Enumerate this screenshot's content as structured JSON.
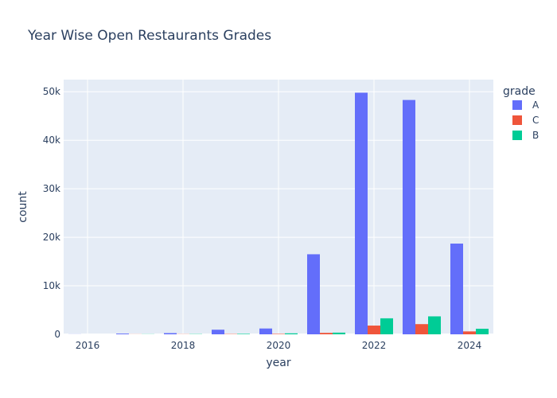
{
  "chart_data": {
    "type": "bar",
    "title": "Year Wise Open Restaurants Grades",
    "xlabel": "year",
    "ylabel": "count",
    "legend_title": "grade",
    "legend_position": "right",
    "x_ticks": [
      2016,
      2018,
      2020,
      2022,
      2024
    ],
    "y_ticks": [
      0,
      10000,
      20000,
      30000,
      40000,
      50000
    ],
    "y_tick_labels": [
      "0",
      "10k",
      "20k",
      "30k",
      "40k",
      "50k"
    ],
    "ylim": [
      0,
      52500
    ],
    "xlim": [
      2015.5,
      2024.5
    ],
    "categories": [
      2016,
      2017,
      2018,
      2019,
      2020,
      2021,
      2022,
      2023,
      2024
    ],
    "series": [
      {
        "name": "A",
        "color": "#636efa",
        "values": [
          20,
          150,
          250,
          950,
          1200,
          16500,
          49800,
          48300,
          18700
        ]
      },
      {
        "name": "C",
        "color": "#ef553b",
        "values": [
          0,
          20,
          30,
          60,
          90,
          300,
          1800,
          2100,
          600
        ]
      },
      {
        "name": "B",
        "color": "#00cc96",
        "values": [
          0,
          30,
          50,
          100,
          200,
          350,
          3300,
          3700,
          1150
        ]
      }
    ],
    "grid": true,
    "plot_bgcolor": "#e5ecf6"
  }
}
